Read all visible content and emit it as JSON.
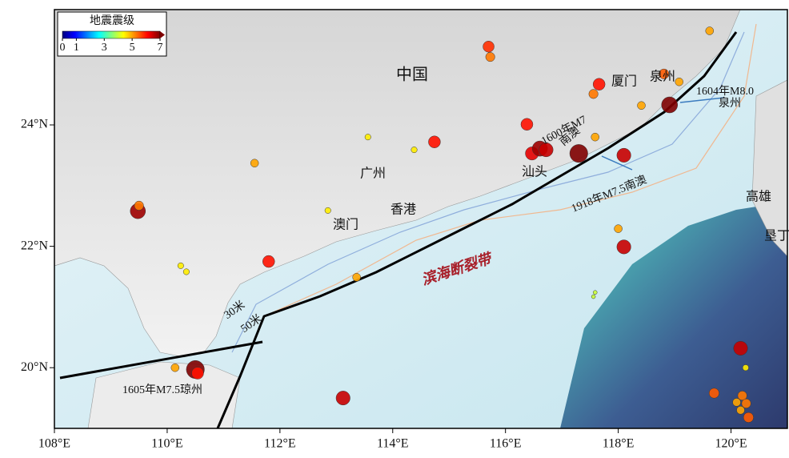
{
  "map": {
    "xlim": [
      108,
      121
    ],
    "ylim": [
      19,
      25.9
    ],
    "xticks": [
      {
        "value": 108,
        "label": "108°E"
      },
      {
        "value": 110,
        "label": "110°E"
      },
      {
        "value": 112,
        "label": "112°E"
      },
      {
        "value": 114,
        "label": "114°E"
      },
      {
        "value": 116,
        "label": "116°E"
      },
      {
        "value": 118,
        "label": "118°E"
      },
      {
        "value": 120,
        "label": "120°E"
      }
    ],
    "yticks": [
      {
        "value": 20,
        "label": "20°N"
      },
      {
        "value": 22,
        "label": "22°N"
      },
      {
        "value": 24,
        "label": "24°N"
      }
    ],
    "colorbar": {
      "title": "地震震级",
      "lim": [
        0,
        7
      ],
      "ticks": [
        0,
        1,
        3,
        5,
        7
      ]
    },
    "labels": [
      "中国",
      "广州",
      "澳门",
      "香港",
      "汕头",
      "厦门",
      "泉州",
      "高雄",
      "垦丁",
      "1604年M8.0",
      "泉州",
      "1600年M7",
      "南澳",
      "1918年M7.5南澳",
      "1605年M7.5琼州",
      "滨海断裂带",
      "30米",
      "50米"
    ],
    "earthquakes": {
      "lon": [
        109.48,
        109.5,
        110.5,
        110.54,
        110.14,
        110.24,
        110.34,
        111.55,
        112.85,
        111.8,
        113.36,
        113.12,
        113.56,
        114.74,
        114.38,
        115.7,
        115.73,
        116.38,
        116.47,
        116.61,
        116.72,
        117.3,
        118.1,
        117.66,
        117.56,
        117.59,
        118.41,
        118.91,
        118.81,
        119.08,
        119.62,
        118.0,
        118.1,
        120.17,
        120.26,
        119.7,
        120.2,
        120.27,
        120.31,
        120.17,
        120.1,
        117.56,
        117.59
      ],
      "lat": [
        22.58,
        22.67,
        19.97,
        19.91,
        20.0,
        21.68,
        21.58,
        23.37,
        22.59,
        21.75,
        21.49,
        19.5,
        23.8,
        23.72,
        23.59,
        25.29,
        25.12,
        24.01,
        23.53,
        23.61,
        23.59,
        23.53,
        23.5,
        24.67,
        24.51,
        23.8,
        24.32,
        24.33,
        24.84,
        24.71,
        25.55,
        22.29,
        21.99,
        20.32,
        20.0,
        19.58,
        19.54,
        19.41,
        19.18,
        19.3,
        19.43,
        21.17,
        21.24
      ],
      "mag": [
        6.8,
        5.3,
        7.5,
        6.0,
        5.0,
        4.5,
        4.5,
        5.0,
        4.5,
        6.0,
        5.0,
        6.5,
        4.5,
        6.0,
        4.5,
        5.8,
        5.3,
        6.0,
        6.3,
        6.8,
        6.5,
        7.5,
        6.5,
        6.0,
        5.3,
        5.0,
        5.0,
        7.0,
        5.5,
        5.0,
        5.0,
        5.0,
        6.5,
        6.5,
        4.5,
        5.5,
        5.3,
        5.3,
        5.5,
        5.0,
        5.0,
        4.0,
        4.0
      ]
    }
  }
}
